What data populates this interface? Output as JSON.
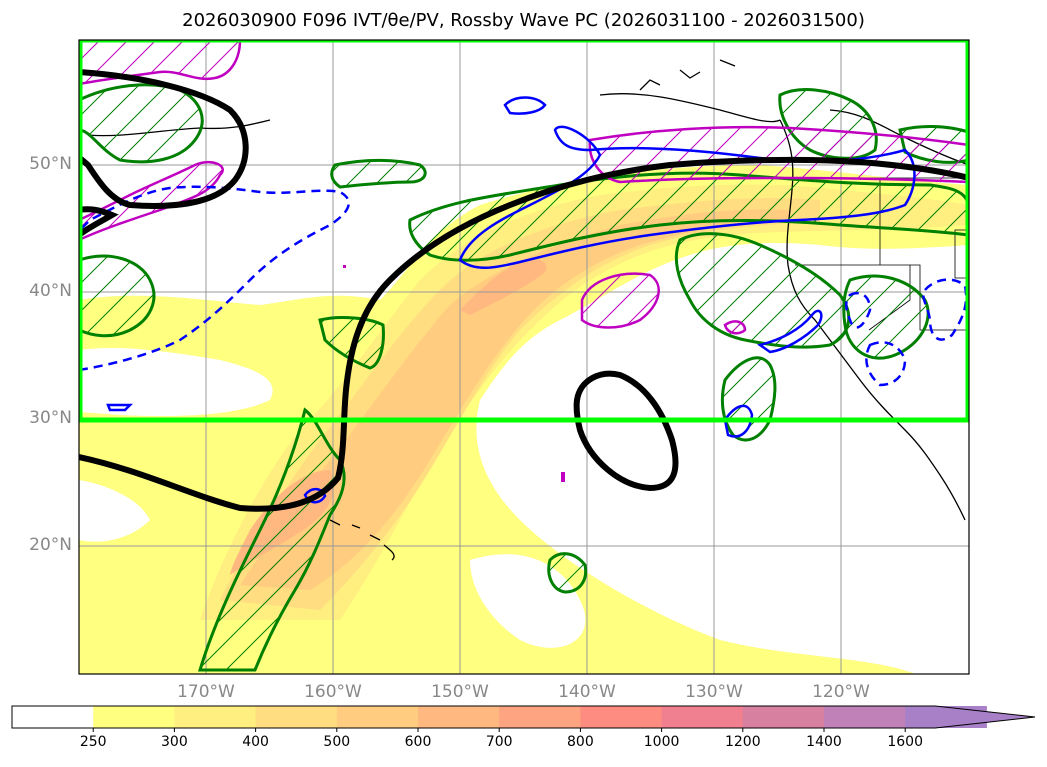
{
  "title": "2026030900 F096 IVT/θe/PV, Rossby Wave PC (2026031100 - 2026031500)",
  "lat_labels": [
    "50°N",
    "40°N",
    "30°N",
    "20°N"
  ],
  "lon_labels": [
    "170°W",
    "160°W",
    "150°W",
    "140°W",
    "130°W",
    "120°W"
  ],
  "colorbar": {
    "ticks": [
      "250",
      "300",
      "400",
      "500",
      "600",
      "700",
      "800",
      "1000",
      "1200",
      "1400",
      "1600"
    ],
    "colors": [
      "#ffffff",
      "#ffff80",
      "#ffee80",
      "#ffdd80",
      "#ffcc80",
      "#ffb880",
      "#ffa480",
      "#ff8c80",
      "#f08090",
      "#d880a0",
      "#c080b8",
      "#a880c8"
    ],
    "extend": "max"
  },
  "colors": {
    "highlight_box": "#00ff00",
    "rossby_contour": "#000000",
    "green_contour": "#008000",
    "magenta_contour": "#c000c0",
    "blue_contour": "#0000ff",
    "frame": "#000000"
  }
}
